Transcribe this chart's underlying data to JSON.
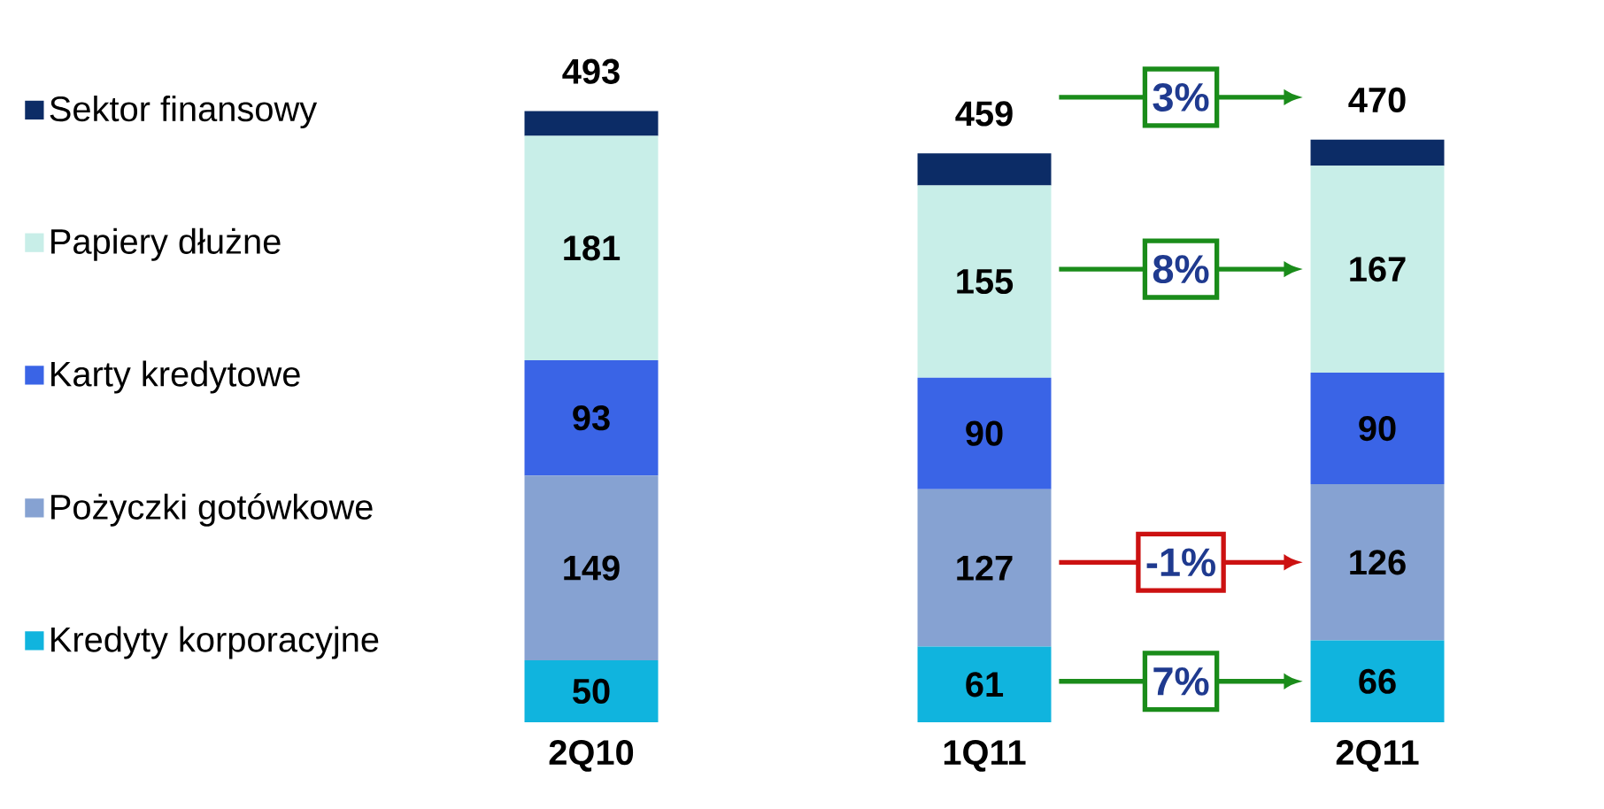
{
  "chart_data": {
    "type": "bar",
    "stacked": true,
    "legend": "left",
    "categories": [
      "2Q10",
      "1Q11",
      "2Q11"
    ],
    "series": [
      {
        "name": "Kredyty korporacyjne",
        "color": "#10b4de",
        "values": [
          50,
          61,
          66
        ],
        "value_labels": [
          "50",
          "61",
          "66"
        ]
      },
      {
        "name": "Pożyczki gotówkowe",
        "color": "#86a2d2",
        "values": [
          149,
          127,
          126
        ],
        "value_labels": [
          "149",
          "127",
          "126"
        ]
      },
      {
        "name": "Karty kredytowe",
        "color": "#3a64e6",
        "values": [
          93,
          90,
          90
        ],
        "value_labels": [
          "93",
          "90",
          "90"
        ]
      },
      {
        "name": "Papiery dłużne",
        "color": "#c8eee8",
        "values": [
          181,
          155,
          167
        ],
        "value_labels": [
          "181",
          "155",
          "167"
        ]
      },
      {
        "name": "Sektor finansowy",
        "color": "#0c2c66",
        "values": [
          20,
          26,
          21
        ],
        "value_labels": [
          null,
          null,
          null
        ]
      }
    ],
    "totals": [
      "493",
      "459",
      "470"
    ],
    "annotations": [
      "3%",
      "8%",
      "-1%",
      "7%"
    ]
  }
}
